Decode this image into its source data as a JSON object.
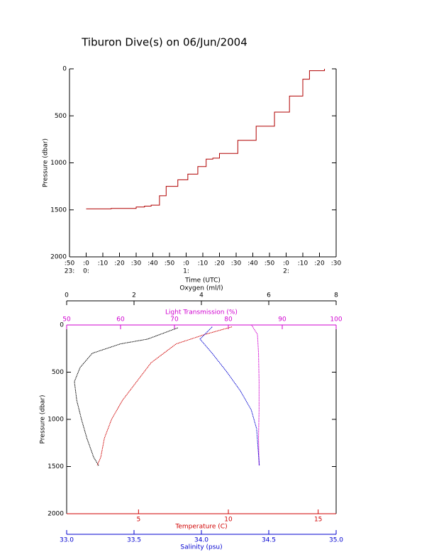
{
  "chart_data": [
    {
      "type": "step",
      "title": "Tiburon Dive(s) on 06/Jun/2004",
      "y_label": "Pressure (dbar)",
      "x_label": "Time (UTC)",
      "xlim": [
        -10,
        150
      ],
      "xticks": [
        {
          "value": -10,
          "label": ":50"
        },
        {
          "value": 0,
          "label": ":0"
        },
        {
          "value": 10,
          "label": ":10"
        },
        {
          "value": 20,
          "label": ":20"
        },
        {
          "value": 30,
          "label": ":30"
        },
        {
          "value": 40,
          "label": ":40"
        },
        {
          "value": 50,
          "label": ":50"
        },
        {
          "value": 60,
          "label": ":0"
        },
        {
          "value": 70,
          "label": ":10"
        },
        {
          "value": 80,
          "label": ":20"
        },
        {
          "value": 90,
          "label": ":30"
        },
        {
          "value": 100,
          "label": ":40"
        },
        {
          "value": 110,
          "label": ":50"
        },
        {
          "value": 120,
          "label": ":0"
        },
        {
          "value": 130,
          "label": ":10"
        },
        {
          "value": 140,
          "label": ":20"
        },
        {
          "value": 150,
          "label": ":30"
        }
      ],
      "xticks_hours": [
        {
          "value": -10,
          "label": "23:"
        },
        {
          "value": 0,
          "label": "0:"
        },
        {
          "value": 60,
          "label": "1:"
        },
        {
          "value": 120,
          "label": "2:"
        }
      ],
      "ylim": [
        2000,
        0
      ],
      "yticks": [
        0,
        500,
        1000,
        1500,
        2000
      ],
      "series": [
        {
          "color": "#b00000",
          "x": [
            0,
            15,
            30,
            35,
            39,
            44,
            48,
            55,
            61,
            67,
            72,
            76,
            80,
            91,
            102,
            113,
            122,
            130,
            134,
            143
          ],
          "values": [
            1490,
            1485,
            1470,
            1460,
            1450,
            1350,
            1250,
            1180,
            1120,
            1040,
            960,
            950,
            900,
            760,
            610,
            460,
            290,
            110,
            20,
            0
          ]
        }
      ]
    },
    {
      "type": "profile",
      "y_label": "Pressure (dbar)",
      "ylim": [
        2000,
        0
      ],
      "yticks": [
        0,
        500,
        1000,
        1500,
        2000
      ],
      "x_axes": [
        {
          "label": "Oxygen (ml/l)",
          "color": "#000000",
          "position": "top",
          "xlim": [
            0,
            8
          ],
          "xticks": [
            0,
            2,
            4,
            6,
            8
          ]
        },
        {
          "label": "Light Transmission (%)",
          "color": "#d000d0",
          "position": "top",
          "xlim": [
            50,
            100
          ],
          "xticks": [
            50,
            60,
            70,
            80,
            90,
            100
          ]
        },
        {
          "label": "Temperature (C)",
          "color": "#d00000",
          "position": "bottom",
          "xlim": [
            1,
            16
          ],
          "xticks": [
            5,
            10,
            15
          ]
        },
        {
          "label": "Salinity (psu)",
          "color": "#0000d0",
          "position": "bottom",
          "xlim": [
            33,
            35
          ],
          "xticks": [
            {
              "value": 33,
              "label": "33.0"
            },
            {
              "value": 33.5,
              "label": "33.5"
            },
            {
              "value": 34,
              "label": "34.0"
            },
            {
              "value": 34.5,
              "label": "34.5"
            },
            {
              "value": 35,
              "label": "35.0"
            }
          ]
        }
      ],
      "series": [
        {
          "axis": 0,
          "color": "#000000",
          "x": [
            3.3,
            2.4,
            1.6,
            0.76,
            0.4,
            0.23,
            0.3,
            0.44,
            0.6,
            0.8,
            0.95
          ],
          "values": [
            30,
            150,
            200,
            300,
            450,
            600,
            800,
            1000,
            1200,
            1400,
            1490
          ]
        },
        {
          "axis": 1,
          "color": "#d000d0",
          "x": [
            84.3,
            85.4,
            85.6,
            85.7,
            85.7,
            85.6,
            85.7
          ],
          "values": [
            0,
            100,
            300,
            600,
            900,
            1200,
            1490
          ]
        },
        {
          "axis": 2,
          "color": "#d00000",
          "x": [
            10.2,
            8.7,
            7.1,
            5.7,
            4.9,
            4.1,
            3.5,
            3.1,
            2.9,
            2.7
          ],
          "values": [
            20,
            100,
            200,
            400,
            600,
            800,
            1000,
            1200,
            1400,
            1490
          ]
        },
        {
          "axis": 3,
          "color": "#0000d0",
          "x": [
            34.08,
            33.99,
            34.08,
            34.19,
            34.29,
            34.37,
            34.41,
            34.42,
            34.43
          ],
          "values": [
            20,
            150,
            300,
            500,
            700,
            900,
            1100,
            1300,
            1490
          ]
        }
      ]
    }
  ]
}
